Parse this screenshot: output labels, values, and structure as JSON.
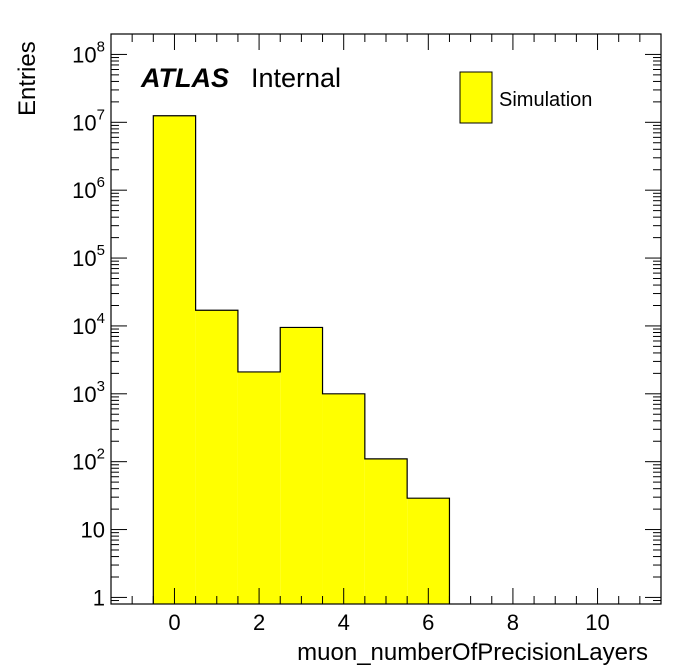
{
  "chart_data": {
    "type": "bar",
    "histogram": true,
    "x_bin_edges": [
      -0.5,
      0.5,
      1.5,
      2.5,
      3.5,
      4.5,
      5.5,
      6.5
    ],
    "values": [
      12500000,
      17000,
      2100,
      9500,
      1000,
      110,
      29
    ],
    "xlabel": "muon_numberOfPrecisionLayers",
    "ylabel": "Entries",
    "xlim": [
      -1.5,
      11.5
    ],
    "ylim": [
      0.8,
      200000000
    ],
    "y_scale": "log",
    "x_ticks": [
      {
        "value": 0,
        "label": "0"
      },
      {
        "value": 2,
        "label": "2"
      },
      {
        "value": 4,
        "label": "4"
      },
      {
        "value": 6,
        "label": "6"
      },
      {
        "value": 8,
        "label": "8"
      },
      {
        "value": 10,
        "label": "10"
      }
    ],
    "y_ticks": [
      {
        "value": 1,
        "base": "1",
        "exp": ""
      },
      {
        "value": 10,
        "base": "10",
        "exp": ""
      },
      {
        "value": 100,
        "base": "10",
        "exp": "2"
      },
      {
        "value": 1000,
        "base": "10",
        "exp": "3"
      },
      {
        "value": 10000,
        "base": "10",
        "exp": "4"
      },
      {
        "value": 100000,
        "base": "10",
        "exp": "5"
      },
      {
        "value": 1000000,
        "base": "10",
        "exp": "6"
      },
      {
        "value": 10000000,
        "base": "10",
        "exp": "7"
      },
      {
        "value": 100000000,
        "base": "10",
        "exp": "8"
      }
    ],
    "series": [
      {
        "name": "Simulation",
        "color": "#ffff00",
        "edge_color": "#000000"
      }
    ],
    "legend_position": "top-right",
    "atlas_label": "ATLAS",
    "atlas_status": "Internal",
    "grid": false
  }
}
